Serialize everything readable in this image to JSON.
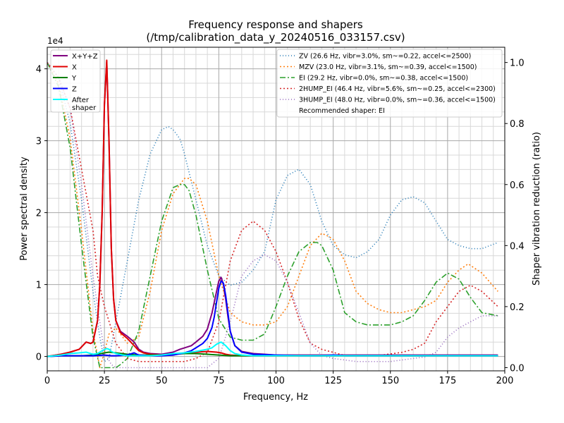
{
  "chart_data": {
    "type": "line",
    "title": "Frequency response and shapers",
    "subtitle": "(/tmp/calibration_data_y_20240516_033157.csv)",
    "xlabel": "Frequency, Hz",
    "ylabel": "Power spectral density",
    "y2label": "Shaper vibration reduction (ratio)",
    "y_multiplier_label": "1e4",
    "xlim": [
      0,
      200
    ],
    "ylim": [
      -0.2,
      4.3
    ],
    "y2lim": [
      -0.0105,
      1.05
    ],
    "xticks": [
      0,
      25,
      50,
      75,
      100,
      125,
      150,
      175,
      200
    ],
    "xtick_labels": [
      "0",
      "25",
      "50",
      "75",
      "100",
      "125",
      "150",
      "175",
      "200"
    ],
    "yticks": [
      0,
      1,
      2,
      3,
      4
    ],
    "ytick_labels": [
      "0",
      "1",
      "2",
      "3",
      "4"
    ],
    "y2ticks": [
      0,
      0.2,
      0.4,
      0.6,
      0.8,
      1.0
    ],
    "y2tick_labels": [
      "0.0",
      "0.2",
      "0.4",
      "0.6",
      "0.8",
      "1.0"
    ],
    "grid": true,
    "psd_series": [
      {
        "name": "X+Y+Z",
        "color": "#800080",
        "width": 2,
        "dash": "",
        "x": [
          0,
          6,
          10,
          14,
          17,
          19,
          20,
          22,
          23,
          24,
          25,
          26,
          27,
          28,
          29,
          30,
          32,
          35,
          38,
          40,
          42,
          45,
          50,
          55,
          58,
          60,
          63,
          65,
          68,
          70,
          72,
          74,
          75,
          76,
          77,
          78,
          79,
          80,
          82,
          85,
          90,
          95,
          100,
          110,
          120,
          130,
          140,
          150,
          160,
          170,
          180,
          190,
          197
        ],
        "y": [
          0,
          0.03,
          0.06,
          0.1,
          0.2,
          0.18,
          0.2,
          0.5,
          1.0,
          2.0,
          3.5,
          4.1,
          3.0,
          1.5,
          0.8,
          0.5,
          0.35,
          0.28,
          0.2,
          0.1,
          0.06,
          0.04,
          0.03,
          0.06,
          0.1,
          0.12,
          0.15,
          0.2,
          0.28,
          0.38,
          0.6,
          0.9,
          1.05,
          1.1,
          1.0,
          0.8,
          0.55,
          0.35,
          0.15,
          0.07,
          0.04,
          0.03,
          0.02,
          0.02,
          0.02,
          0.02,
          0.02,
          0.02,
          0.02,
          0.02,
          0.02,
          0.02,
          0.02
        ]
      },
      {
        "name": "X",
        "color": "#e00000",
        "width": 2,
        "dash": "",
        "x": [
          0,
          6,
          10,
          14,
          17,
          19,
          20,
          22,
          23,
          24,
          25,
          26,
          27,
          28,
          29,
          30,
          32,
          35,
          38,
          40,
          42,
          45,
          50,
          55,
          60,
          65,
          70,
          74,
          76,
          78,
          80,
          85,
          90,
          100,
          120,
          150,
          197
        ],
        "y": [
          0,
          0.03,
          0.06,
          0.1,
          0.2,
          0.18,
          0.2,
          0.5,
          1.0,
          2.0,
          3.5,
          4.12,
          3.0,
          1.5,
          0.8,
          0.5,
          0.33,
          0.25,
          0.15,
          0.08,
          0.05,
          0.03,
          0.02,
          0.02,
          0.05,
          0.06,
          0.07,
          0.06,
          0.05,
          0.03,
          0.02,
          0.01,
          0.01,
          0.01,
          0.01,
          0.01,
          0.01
        ]
      },
      {
        "name": "Y",
        "color": "#008000",
        "width": 2,
        "dash": "",
        "x": [
          0,
          6,
          15,
          20,
          25,
          27,
          30,
          35,
          40,
          50,
          55,
          60,
          65,
          70,
          75,
          80,
          85,
          90,
          100,
          130,
          160,
          197
        ],
        "y": [
          0,
          0.01,
          0.01,
          0.02,
          0.05,
          0.06,
          0.05,
          0.03,
          0.02,
          0.02,
          0.03,
          0.04,
          0.04,
          0.03,
          0.02,
          0.01,
          0.01,
          0.01,
          0.01,
          0.01,
          0.01,
          0.01
        ]
      },
      {
        "name": "Z",
        "color": "#0000ff",
        "width": 2,
        "dash": "",
        "x": [
          0,
          6,
          10,
          15,
          20,
          25,
          28,
          30,
          35,
          38,
          40,
          45,
          50,
          55,
          60,
          63,
          65,
          68,
          70,
          72,
          73,
          74,
          75,
          76,
          77,
          78,
          79,
          80,
          82,
          85,
          90,
          100,
          110,
          120,
          125,
          130,
          140,
          150,
          197
        ],
        "y": [
          0,
          0.01,
          0.01,
          0.01,
          0.01,
          0.02,
          0.01,
          0.01,
          0.02,
          0.05,
          0.02,
          0.01,
          0.01,
          0.02,
          0.05,
          0.08,
          0.12,
          0.18,
          0.25,
          0.4,
          0.55,
          0.75,
          0.95,
          1.05,
          1.02,
          0.85,
          0.6,
          0.35,
          0.15,
          0.06,
          0.03,
          0.02,
          0.01,
          0.01,
          0.02,
          0.01,
          0.01,
          0.01,
          0.01
        ]
      },
      {
        "name": "After\nshaper",
        "color": "#00ffff",
        "width": 2,
        "dash": "",
        "x": [
          0,
          6,
          10,
          14,
          17,
          19,
          20,
          22,
          24,
          26,
          27,
          28,
          30,
          33,
          35,
          38,
          40,
          45,
          50,
          55,
          60,
          65,
          70,
          72,
          74,
          76,
          78,
          80,
          82,
          85,
          90,
          100,
          130,
          160,
          197
        ],
        "y": [
          0,
          0.02,
          0.04,
          0.05,
          0.06,
          0.04,
          0.03,
          0.04,
          0.08,
          0.11,
          0.1,
          0.07,
          0.04,
          0.02,
          0.01,
          0.01,
          0.01,
          0.01,
          0.02,
          0.04,
          0.05,
          0.07,
          0.1,
          0.12,
          0.17,
          0.2,
          0.15,
          0.08,
          0.04,
          0.02,
          0.01,
          0.01,
          0.01,
          0.01,
          0.01
        ]
      }
    ],
    "shaper_series": [
      {
        "name": "ZV (26.6 Hz, vibr=3.0%, sm~=0.22, accel<=2500)",
        "color": "#1f77b4",
        "dash": "1,3",
        "x": [
          0,
          5,
          10,
          15,
          20,
          23,
          25,
          27,
          30,
          35,
          40,
          45,
          50,
          53,
          55,
          58,
          60,
          65,
          70,
          75,
          80,
          85,
          90,
          95,
          100,
          105,
          110,
          115,
          120,
          125,
          130,
          135,
          140,
          145,
          150,
          155,
          160,
          165,
          170,
          175,
          180,
          185,
          190,
          197
        ],
        "y": [
          1.0,
          0.95,
          0.8,
          0.55,
          0.25,
          0.1,
          0.02,
          0.03,
          0.15,
          0.35,
          0.55,
          0.7,
          0.78,
          0.79,
          0.78,
          0.75,
          0.7,
          0.55,
          0.4,
          0.3,
          0.27,
          0.28,
          0.32,
          0.38,
          0.55,
          0.63,
          0.65,
          0.6,
          0.48,
          0.4,
          0.37,
          0.36,
          0.38,
          0.42,
          0.5,
          0.55,
          0.56,
          0.54,
          0.48,
          0.42,
          0.4,
          0.39,
          0.39,
          0.41
        ]
      },
      {
        "name": "MZV (23.0 Hz, vibr=3.1%, sm~=0.39, accel<=1500)",
        "color": "#ff7f0e",
        "dash": "2,3",
        "x": [
          0,
          5,
          10,
          15,
          20,
          23,
          25,
          27,
          30,
          33,
          35,
          40,
          45,
          50,
          55,
          60,
          62,
          65,
          70,
          75,
          80,
          85,
          90,
          95,
          100,
          105,
          110,
          115,
          120,
          123,
          125,
          130,
          135,
          140,
          145,
          150,
          155,
          160,
          165,
          170,
          175,
          180,
          184,
          190,
          197
        ],
        "y": [
          1.0,
          0.93,
          0.75,
          0.45,
          0.12,
          0.0,
          0.05,
          0.11,
          0.13,
          0.1,
          0.08,
          0.1,
          0.25,
          0.45,
          0.57,
          0.62,
          0.62,
          0.6,
          0.48,
          0.3,
          0.18,
          0.15,
          0.14,
          0.14,
          0.15,
          0.2,
          0.3,
          0.4,
          0.44,
          0.43,
          0.42,
          0.35,
          0.25,
          0.21,
          0.19,
          0.18,
          0.18,
          0.19,
          0.2,
          0.22,
          0.28,
          0.32,
          0.34,
          0.31,
          0.25
        ]
      },
      {
        "name": "EI (29.2 Hz, vibr=0.0%, sm~=0.38, accel<=1500)",
        "color": "#2ca02c",
        "dash": "8,3,2,3",
        "x": [
          0,
          5,
          10,
          15,
          20,
          23,
          25,
          27,
          30,
          32,
          35,
          40,
          45,
          50,
          55,
          58,
          60,
          62,
          65,
          70,
          75,
          80,
          85,
          90,
          95,
          100,
          105,
          110,
          115,
          118,
          120,
          125,
          130,
          135,
          140,
          145,
          150,
          155,
          160,
          165,
          170,
          175,
          180,
          185,
          190,
          197
        ],
        "y": [
          1.0,
          0.92,
          0.72,
          0.4,
          0.1,
          0.0,
          0.0,
          0.0,
          0.0,
          0.01,
          0.03,
          0.12,
          0.3,
          0.48,
          0.59,
          0.6,
          0.6,
          0.58,
          0.5,
          0.32,
          0.16,
          0.1,
          0.09,
          0.09,
          0.11,
          0.2,
          0.3,
          0.38,
          0.41,
          0.41,
          0.4,
          0.32,
          0.18,
          0.15,
          0.14,
          0.14,
          0.14,
          0.15,
          0.17,
          0.22,
          0.28,
          0.31,
          0.29,
          0.23,
          0.18,
          0.17
        ]
      },
      {
        "name": "2HUMP_EI (46.4 Hz, vibr=5.6%, sm~=0.25, accel<=2300)",
        "color": "#d62728",
        "dash": "2,3",
        "x": [
          0,
          5,
          10,
          15,
          20,
          22,
          25,
          30,
          35,
          40,
          45,
          50,
          55,
          60,
          65,
          70,
          75,
          80,
          85,
          90,
          95,
          100,
          105,
          110,
          115,
          120,
          125,
          130,
          135,
          140,
          145,
          150,
          155,
          160,
          165,
          170,
          175,
          180,
          185,
          190,
          197
        ],
        "y": [
          1.0,
          0.95,
          0.85,
          0.65,
          0.45,
          0.3,
          0.2,
          0.08,
          0.03,
          0.02,
          0.02,
          0.02,
          0.02,
          0.02,
          0.03,
          0.05,
          0.15,
          0.35,
          0.45,
          0.48,
          0.45,
          0.38,
          0.28,
          0.16,
          0.08,
          0.06,
          0.05,
          0.04,
          0.04,
          0.04,
          0.04,
          0.045,
          0.05,
          0.06,
          0.08,
          0.15,
          0.2,
          0.25,
          0.27,
          0.25,
          0.2
        ]
      },
      {
        "name": "3HUMP_EI (48.0 Hz, vibr=0.0%, sm~=0.36, accel<=1500)",
        "color": "#9467bd",
        "dash": "1,3",
        "x": [
          0,
          5,
          10,
          15,
          20,
          23,
          25,
          28,
          30,
          35,
          40,
          45,
          50,
          55,
          60,
          65,
          70,
          75,
          80,
          85,
          90,
          95,
          100,
          105,
          110,
          115,
          120,
          125,
          130,
          135,
          140,
          145,
          150,
          155,
          160,
          165,
          170,
          175,
          180,
          185,
          190,
          197
        ],
        "y": [
          1.0,
          0.95,
          0.85,
          0.6,
          0.3,
          0.15,
          0.05,
          0.01,
          0.0,
          0.0,
          0.0,
          0.0,
          0.0,
          0.0,
          0.0,
          0.0,
          0.0,
          0.03,
          0.15,
          0.3,
          0.35,
          0.37,
          0.35,
          0.28,
          0.18,
          0.08,
          0.04,
          0.03,
          0.025,
          0.02,
          0.02,
          0.02,
          0.02,
          0.025,
          0.03,
          0.035,
          0.05,
          0.1,
          0.13,
          0.15,
          0.17,
          0.17
        ]
      }
    ],
    "psd_legend": [
      {
        "label": "X+Y+Z",
        "color": "#800080"
      },
      {
        "label": "X",
        "color": "#e00000"
      },
      {
        "label": "Y",
        "color": "#008000"
      },
      {
        "label": "Z",
        "color": "#0000ff"
      },
      {
        "label": "After",
        "label2": "shaper",
        "color": "#00ffff"
      }
    ],
    "shaper_legend_extra": "Recommended shaper: EI",
    "psd_legend_position": "top-left",
    "shaper_legend_position": "top-right"
  }
}
